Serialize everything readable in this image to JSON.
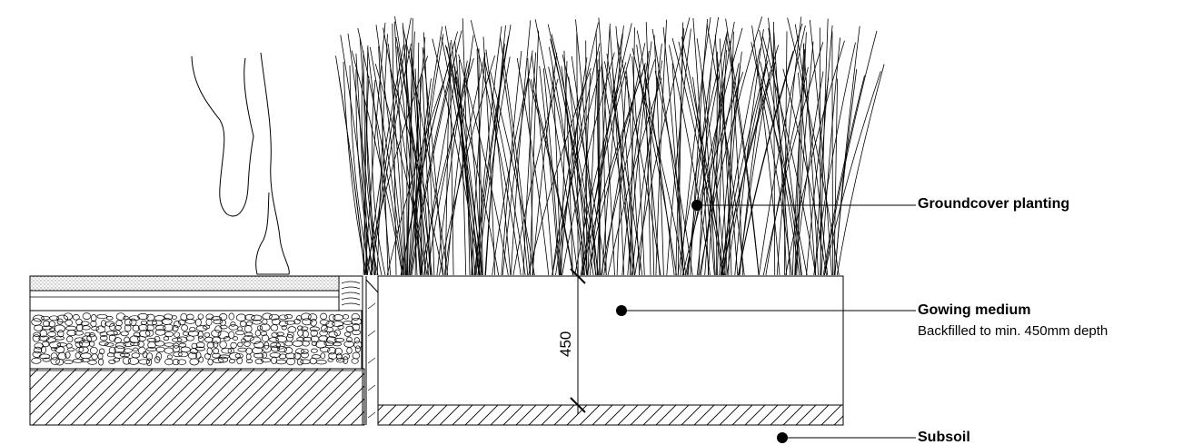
{
  "labels": {
    "groundcover": {
      "title": "Groundcover planting"
    },
    "growing_medium": {
      "title": "Gowing medium",
      "note": "Backfilled to min. 450mm depth"
    },
    "subsoil": {
      "title": "Subsoil"
    }
  },
  "dimension": {
    "value": "450"
  },
  "colors": {
    "line": "#000000",
    "paving_hatch": "#555555",
    "background": "#ffffff"
  }
}
